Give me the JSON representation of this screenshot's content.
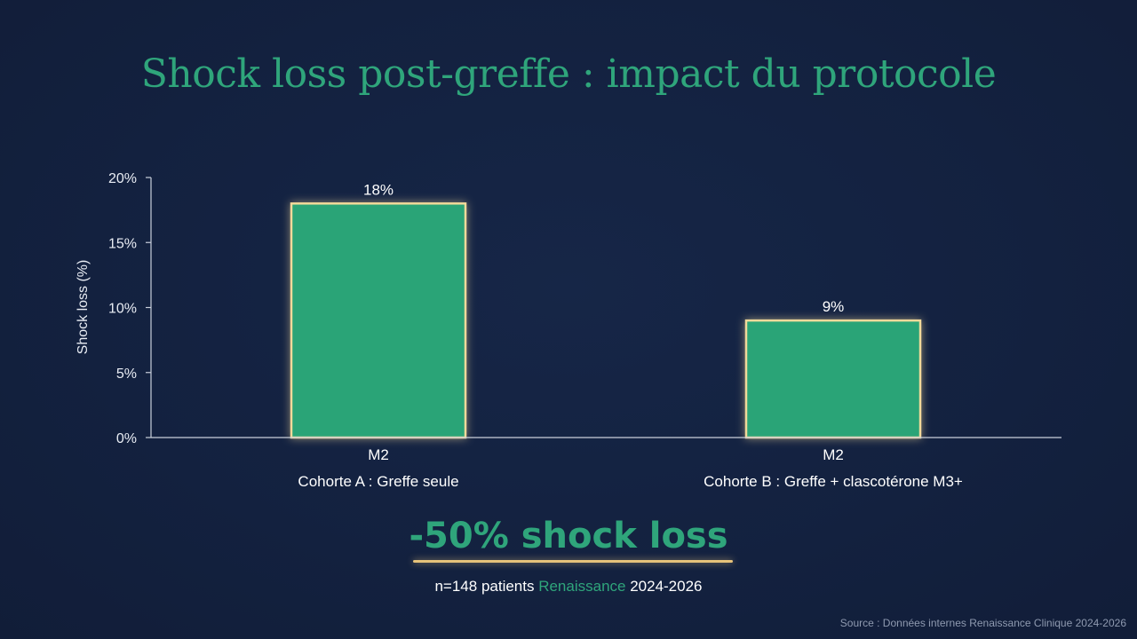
{
  "slide": {
    "title": "Shock loss post-greffe : impact du protocole",
    "highlight": "-50% shock loss",
    "sample_prefix": "n=148 patients ",
    "sample_accent": "Renaissance",
    "sample_suffix": " 2024-2026",
    "source": "Source : Données internes Renaissance Clinique 2024-2026"
  },
  "colors": {
    "background": "#13213f",
    "title": "#2fa57b",
    "bar_fill": "#2aa477",
    "bar_outline": "#f1d99a",
    "accent_rule": "#e6c27a",
    "axis": "#c9cfdb"
  },
  "chart_data": {
    "type": "bar",
    "title": "",
    "xlabel": "",
    "ylabel": "Shock loss (%)",
    "ylim": [
      0,
      20
    ],
    "yticks": [
      0,
      5,
      10,
      15,
      20
    ],
    "ytick_labels": [
      "0%",
      "5%",
      "10%",
      "15%",
      "20%"
    ],
    "categories": [
      {
        "top": "M2",
        "bottom": "Cohorte A : Greffe seule"
      },
      {
        "top": "M2",
        "bottom": "Cohorte B : Greffe + clascotérone M3+"
      }
    ],
    "values": [
      18,
      9
    ],
    "data_labels": [
      "18%",
      "9%"
    ],
    "grid": false,
    "legend": "none"
  }
}
